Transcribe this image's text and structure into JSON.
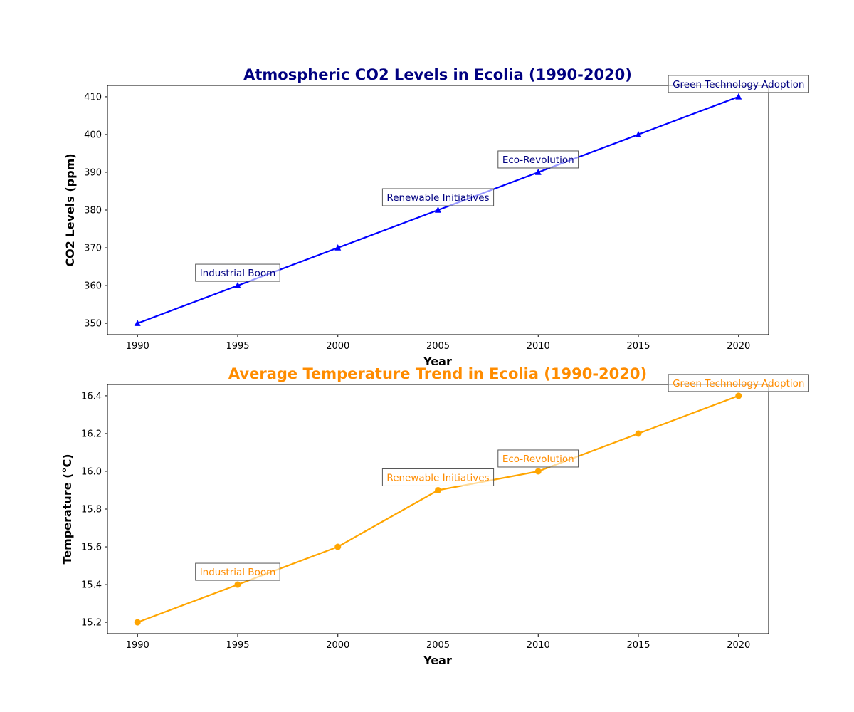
{
  "chart_data": [
    {
      "type": "line",
      "title": "Atmospheric CO2 Levels in Ecolia (1990-2020)",
      "xlabel": "Year",
      "ylabel": "CO2 Levels (ppm)",
      "x": [
        1990,
        1995,
        2000,
        2005,
        2010,
        2015,
        2020
      ],
      "series": [
        {
          "values": [
            350,
            360,
            370,
            380,
            390,
            400,
            410
          ]
        }
      ],
      "marker": "triangle",
      "xlim": [
        1988.5,
        2021.5
      ],
      "ylim": [
        347,
        413
      ],
      "xticks": [
        1990,
        1995,
        2000,
        2005,
        2010,
        2015,
        2020
      ],
      "yticks": [
        350,
        360,
        370,
        380,
        390,
        400,
        410
      ],
      "grid": false,
      "colors": {
        "title": "#000080",
        "line": "#0000ff",
        "annotation_text": "#000080"
      },
      "annotations": [
        {
          "x": 1995,
          "y": 360,
          "text": "Industrial Boom"
        },
        {
          "x": 2005,
          "y": 380,
          "text": "Renewable Initiatives"
        },
        {
          "x": 2010,
          "y": 390,
          "text": "Eco-Revolution"
        },
        {
          "x": 2020,
          "y": 410,
          "text": "Green Technology Adoption"
        }
      ]
    },
    {
      "type": "line",
      "title": "Average Temperature Trend in Ecolia (1990-2020)",
      "xlabel": "Year",
      "ylabel": "Temperature (°C)",
      "x": [
        1990,
        1995,
        2000,
        2005,
        2010,
        2015,
        2020
      ],
      "series": [
        {
          "values": [
            15.2,
            15.4,
            15.6,
            15.9,
            16.0,
            16.2,
            16.4
          ]
        }
      ],
      "marker": "circle",
      "xlim": [
        1988.5,
        2021.5
      ],
      "ylim": [
        15.14,
        16.46
      ],
      "xticks": [
        1990,
        1995,
        2000,
        2005,
        2010,
        2015,
        2020
      ],
      "yticks": [
        "15.2",
        "15.4",
        "15.6",
        "15.8",
        "16.0",
        "16.2",
        "16.4"
      ],
      "grid": false,
      "colors": {
        "title": "#ff8c00",
        "line": "#ffa500",
        "annotation_text": "#ff8c00"
      },
      "annotations": [
        {
          "x": 1995,
          "y": 15.4,
          "text": "Industrial Boom"
        },
        {
          "x": 2005,
          "y": 15.9,
          "text": "Renewable Initiatives"
        },
        {
          "x": 2010,
          "y": 16.0,
          "text": "Eco-Revolution"
        },
        {
          "x": 2020,
          "y": 16.4,
          "text": "Green Technology Adoption"
        }
      ]
    }
  ]
}
